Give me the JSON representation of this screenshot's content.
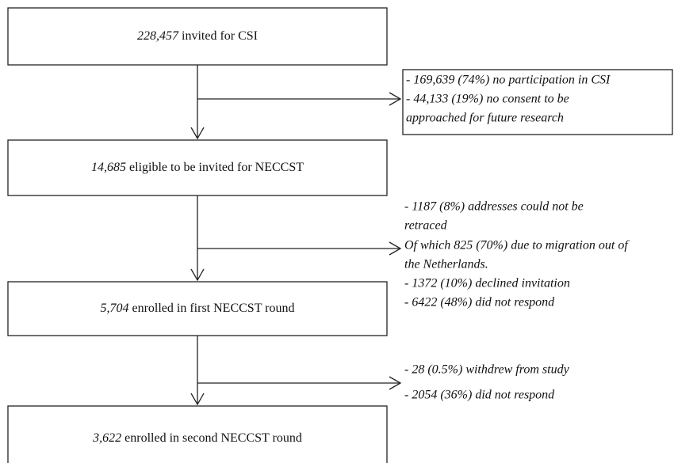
{
  "nodes": [
    {
      "count": "228,457",
      "label": "invited for CSI"
    },
    {
      "count": "14,685",
      "label": "eligible  to be invited for NECCST"
    },
    {
      "count": "5,704",
      "label": "enrolled in first NECCST round"
    },
    {
      "count": "3,622",
      "label": "enrolled in second NECCST round"
    }
  ],
  "exclusions": [
    {
      "lines": [
        "- 169,639 (74%) no participation in CSI",
        "- 44,133 (19%) no consent to be",
        "approached for future research"
      ]
    },
    {
      "lines": [
        "- 1187 (8%) addresses could not be",
        "retraced",
        "Of which 825 (70%) due to migration out of",
        "the Netherlands.",
        "- 1372 (10%) declined invitation",
        "- 6422 (48%) did not respond"
      ]
    },
    {
      "lines": [
        "- 28 (0.5%) withdrew from study",
        "- 2054 (36%) did not respond"
      ]
    }
  ]
}
